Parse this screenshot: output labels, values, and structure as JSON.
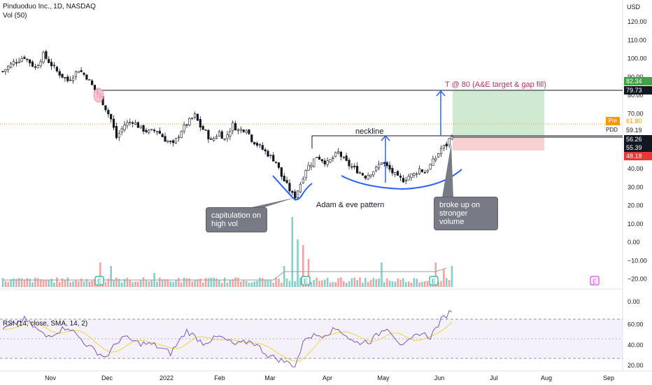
{
  "header": {
    "title": "Pinduoduo Inc., 1D, NASDAQ",
    "vol_label": "Vol (50)",
    "rsi_label": "RSI (14, close, SMA, 14, 2)",
    "currency": "USD"
  },
  "annotations": {
    "neckline": "neckline",
    "target": "T @ 80 (A&E target & gap fill)",
    "pattern": "Adam & eve pattern",
    "capitulation": "capitulation on high vol",
    "breakout": "broke up on stronger volume",
    "earnings_marker": "E"
  },
  "price_tags": {
    "level_8234": "82.34",
    "level_7973": "79.73",
    "pre_label": "Pre",
    "pre_value": "61.80",
    "ticker": "PDD",
    "last_value": "59.19",
    "level_5626": "56.26",
    "level_5539": "55.39",
    "level_4818": "48.18"
  },
  "colors": {
    "up": "#26a69a",
    "down": "#ef5350",
    "annotation_blue": "#2962ff",
    "target_text": "#b2365a",
    "profit_zone": "#c8e6c9",
    "loss_zone": "#f8c9cb",
    "rsi_line": "#7e57c2",
    "rsi_ma": "#f5d24a",
    "vol_ma": "#9e9e9e"
  },
  "chart_data": {
    "type": "candlestick",
    "title": "Pinduoduo Inc., 1D, NASDAQ",
    "x_ticks": [
      "Nov",
      "Dec",
      "2022",
      "Feb",
      "Mar",
      "Apr",
      "May",
      "Jun",
      "Jul",
      "Aug",
      "Sep"
    ],
    "price_axis_ticks": [
      "120.00",
      "110.00",
      "100.00",
      "90.00",
      "80.00",
      "70.00",
      "60.00",
      "50.00",
      "40.00",
      "30.00",
      "20.00",
      "10.00",
      "0.00",
      "−10.00",
      "−20.00"
    ],
    "price_ylim": [
      -22,
      125
    ],
    "rsi_axis_ticks": [
      "0.00",
      "60.00",
      "40.00",
      "20.00"
    ],
    "rsi_ylim": [
      16,
      76
    ],
    "rsi_bands": [
      70,
      30
    ],
    "price_path": [
      {
        "t": 0,
        "close": 93
      },
      {
        "t": 4,
        "close": 98
      },
      {
        "t": 8,
        "close": 101
      },
      {
        "t": 12,
        "close": 95
      },
      {
        "t": 15,
        "close": 102
      },
      {
        "t": 20,
        "close": 93
      },
      {
        "t": 24,
        "close": 88
      },
      {
        "t": 28,
        "close": 94
      },
      {
        "t": 31,
        "close": 90
      },
      {
        "t": 34,
        "close": 83
      },
      {
        "t": 37,
        "close": 76
      },
      {
        "t": 40,
        "close": 67
      },
      {
        "t": 42,
        "close": 57
      },
      {
        "t": 45,
        "close": 64
      },
      {
        "t": 48,
        "close": 66
      },
      {
        "t": 51,
        "close": 62
      },
      {
        "t": 54,
        "close": 60
      },
      {
        "t": 57,
        "close": 61
      },
      {
        "t": 60,
        "close": 56
      },
      {
        "t": 63,
        "close": 53
      },
      {
        "t": 66,
        "close": 61
      },
      {
        "t": 69,
        "close": 66
      },
      {
        "t": 71,
        "close": 69
      },
      {
        "t": 73,
        "close": 63
      },
      {
        "t": 75,
        "close": 60
      },
      {
        "t": 77,
        "close": 55
      },
      {
        "t": 80,
        "close": 60
      },
      {
        "t": 82,
        "close": 56
      },
      {
        "t": 85,
        "close": 64
      },
      {
        "t": 87,
        "close": 61
      },
      {
        "t": 90,
        "close": 62
      },
      {
        "t": 92,
        "close": 56
      },
      {
        "t": 95,
        "close": 52
      },
      {
        "t": 98,
        "close": 48
      },
      {
        "t": 101,
        "close": 44
      },
      {
        "t": 103,
        "close": 36
      },
      {
        "t": 105,
        "close": 31
      },
      {
        "t": 107,
        "close": 26
      },
      {
        "t": 108,
        "close": 25
      },
      {
        "t": 110,
        "close": 32
      },
      {
        "t": 112,
        "close": 40
      },
      {
        "t": 114,
        "close": 43
      },
      {
        "t": 116,
        "close": 47
      },
      {
        "t": 118,
        "close": 45
      },
      {
        "t": 120,
        "close": 43
      },
      {
        "t": 122,
        "close": 46
      },
      {
        "t": 124,
        "close": 49
      },
      {
        "t": 126,
        "close": 45
      },
      {
        "t": 128,
        "close": 42
      },
      {
        "t": 130,
        "close": 40
      },
      {
        "t": 132,
        "close": 38
      },
      {
        "t": 134,
        "close": 36
      },
      {
        "t": 136,
        "close": 38
      },
      {
        "t": 138,
        "close": 40
      },
      {
        "t": 140,
        "close": 44
      },
      {
        "t": 142,
        "close": 41
      },
      {
        "t": 144,
        "close": 38
      },
      {
        "t": 146,
        "close": 35
      },
      {
        "t": 148,
        "close": 34
      },
      {
        "t": 150,
        "close": 36
      },
      {
        "t": 152,
        "close": 37
      },
      {
        "t": 154,
        "close": 40
      },
      {
        "t": 156,
        "close": 38
      },
      {
        "t": 158,
        "close": 42
      },
      {
        "t": 160,
        "close": 46
      },
      {
        "t": 162,
        "close": 51
      },
      {
        "t": 164,
        "close": 53
      },
      {
        "t": 166,
        "close": 59
      }
    ],
    "volume_spikes": [
      {
        "t": 36,
        "rel": 0.35
      },
      {
        "t": 40,
        "rel": 0.3
      },
      {
        "t": 56,
        "rel": 0.2
      },
      {
        "t": 104,
        "rel": 0.3
      },
      {
        "t": 107,
        "rel": 1.0
      },
      {
        "t": 109,
        "rel": 0.68
      },
      {
        "t": 111,
        "rel": 0.6
      },
      {
        "t": 113,
        "rel": 0.4
      },
      {
        "t": 140,
        "rel": 0.35
      },
      {
        "t": 160,
        "rel": 0.35
      },
      {
        "t": 163,
        "rel": 0.25
      },
      {
        "t": 166,
        "rel": 0.3
      }
    ],
    "rsi_path": [
      {
        "t": 0,
        "v": 55
      },
      {
        "t": 8,
        "v": 65
      },
      {
        "t": 16,
        "v": 48
      },
      {
        "t": 24,
        "v": 58
      },
      {
        "t": 32,
        "v": 38
      },
      {
        "t": 38,
        "v": 28
      },
      {
        "t": 44,
        "v": 48
      },
      {
        "t": 50,
        "v": 42
      },
      {
        "t": 56,
        "v": 40
      },
      {
        "t": 62,
        "v": 32
      },
      {
        "t": 68,
        "v": 54
      },
      {
        "t": 74,
        "v": 42
      },
      {
        "t": 80,
        "v": 48
      },
      {
        "t": 86,
        "v": 40
      },
      {
        "t": 92,
        "v": 44
      },
      {
        "t": 98,
        "v": 30
      },
      {
        "t": 104,
        "v": 24
      },
      {
        "t": 108,
        "v": 20
      },
      {
        "t": 112,
        "v": 48
      },
      {
        "t": 118,
        "v": 50
      },
      {
        "t": 124,
        "v": 56
      },
      {
        "t": 130,
        "v": 42
      },
      {
        "t": 136,
        "v": 44
      },
      {
        "t": 142,
        "v": 58
      },
      {
        "t": 148,
        "v": 38
      },
      {
        "t": 154,
        "v": 52
      },
      {
        "t": 158,
        "v": 48
      },
      {
        "t": 162,
        "v": 64
      },
      {
        "t": 166,
        "v": 74
      }
    ],
    "levels": {
      "target": 79.73,
      "neckline": 56.26,
      "stop": 48.18,
      "target_zone_top": 82.34,
      "prev_close": 59.19,
      "premarket": 61.8
    }
  }
}
